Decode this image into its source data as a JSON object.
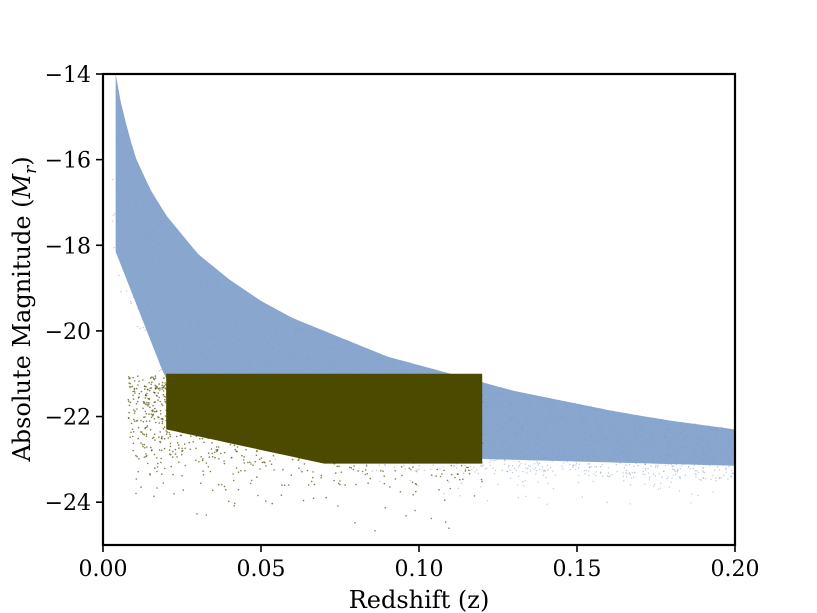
{
  "chart_data": {
    "type": "scatter",
    "title": "",
    "xlabel": "Redshift (z)",
    "ylabel": "Absolute Magnitude (M_r)",
    "ylabel_plain": "Absolute Magnitude (",
    "ylabel_math_symbol": "M",
    "ylabel_math_sub": "r",
    "ylabel_close": ")",
    "xlim": [
      0.0,
      0.2
    ],
    "ylim": [
      -25,
      -14
    ],
    "y_inverted_display": true,
    "grid": false,
    "legend": "none",
    "xticks": [
      0.0,
      0.05,
      0.1,
      0.15,
      0.2
    ],
    "xtick_labels": [
      "0.00",
      "0.05",
      "0.10",
      "0.15",
      "0.20"
    ],
    "yticks": [
      -14,
      -16,
      -18,
      -20,
      -22,
      -24
    ],
    "ytick_labels": [
      "−14",
      "−16",
      "−18",
      "−20",
      "−22",
      "−24"
    ],
    "series": [
      {
        "color": "#7f9ecb",
        "description_points": "flux-limited galaxy sample: dense band below the curve",
        "envelope_upper_limit_curve": {
          "z": [
            0.004,
            0.006,
            0.01,
            0.015,
            0.02,
            0.03,
            0.04,
            0.05,
            0.06,
            0.07,
            0.08,
            0.09,
            0.1,
            0.11,
            0.12,
            0.13,
            0.14,
            0.15,
            0.16,
            0.17,
            0.18,
            0.19,
            0.2
          ],
          "Mr": [
            -14.0,
            -14.8,
            -15.9,
            -16.7,
            -17.3,
            -18.2,
            -18.8,
            -19.3,
            -19.7,
            -20.0,
            -20.3,
            -20.6,
            -20.8,
            -21.0,
            -21.2,
            -21.4,
            -21.55,
            -21.7,
            -21.85,
            -21.98,
            -22.1,
            -22.2,
            -22.3
          ]
        },
        "envelope_lower_limit_curve": {
          "z": [
            0.004,
            0.02,
            0.05,
            0.1,
            0.15,
            0.2
          ],
          "Mr": [
            -18.5,
            -21.5,
            -22.8,
            -23.3,
            -23.4,
            -23.5
          ]
        }
      },
      {
        "color": "#4b4a00",
        "description_points": "volume-limited subsample",
        "selection_box": {
          "z_min": 0.02,
          "z_max": 0.12,
          "Mr_faint_limit": -21.0
        },
        "bright_tail_Mr": -23.5
      }
    ]
  }
}
